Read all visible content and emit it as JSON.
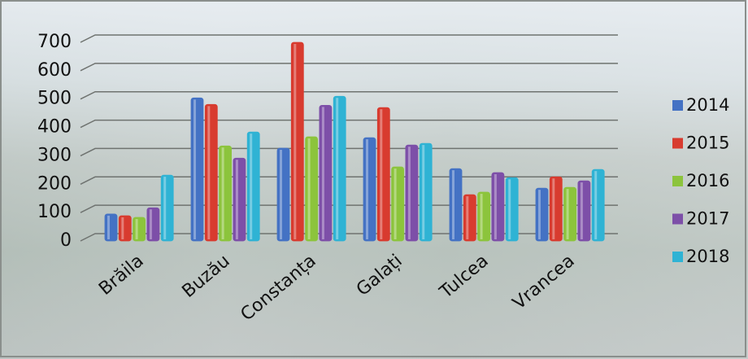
{
  "chart_data": {
    "type": "bar",
    "categories": [
      "Brăila",
      "Buzău",
      "Constanța",
      "Galați",
      "Tulcea",
      "Vrancea"
    ],
    "series": [
      {
        "name": "2014",
        "color": "#4472c4",
        "values": [
          95,
          504,
          327,
          364,
          255,
          186
        ]
      },
      {
        "name": "2015",
        "color": "#d83b2f",
        "values": [
          89,
          481,
          700,
          470,
          163,
          226
        ]
      },
      {
        "name": "2016",
        "color": "#8cc43c",
        "values": [
          83,
          335,
          367,
          261,
          172,
          189
        ]
      },
      {
        "name": "2017",
        "color": "#7d4fa8",
        "values": [
          117,
          292,
          478,
          338,
          241,
          212
        ]
      },
      {
        "name": "2018",
        "color": "#2fb3d4",
        "values": [
          232,
          384,
          510,
          344,
          223,
          252
        ]
      }
    ],
    "ylim": [
      0,
      700
    ],
    "yticks": [
      0,
      100,
      200,
      300,
      400,
      500,
      600,
      700
    ],
    "grid": true,
    "legend": "right"
  }
}
